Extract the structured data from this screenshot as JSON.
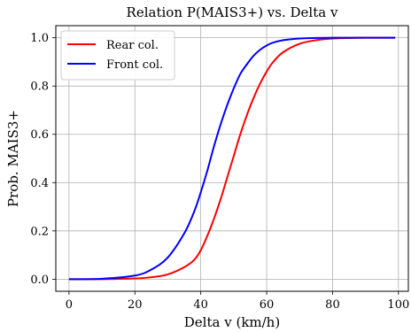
{
  "chart_data": {
    "type": "line",
    "title": "Relation P(MAIS3+) vs. Delta v",
    "xlabel": "Delta v (km/h)",
    "ylabel": "Prob. MAIS3+",
    "xlim": [
      -4,
      103
    ],
    "ylim": [
      -0.05,
      1.05
    ],
    "xticks": [
      0,
      20,
      40,
      60,
      80,
      100
    ],
    "yticks": [
      0.0,
      0.2,
      0.4,
      0.6,
      0.8,
      1.0
    ],
    "xtick_labels": [
      "0",
      "20",
      "40",
      "60",
      "80",
      "100"
    ],
    "ytick_labels": [
      "0.0",
      "0.2",
      "0.4",
      "0.6",
      "0.8",
      "1.0"
    ],
    "grid": true,
    "legend_position": "top-left",
    "x": [
      0,
      10,
      20,
      25,
      30,
      35,
      38,
      40,
      42,
      44,
      46,
      48,
      50,
      52,
      54,
      56,
      58,
      60,
      62,
      65,
      70,
      75,
      80,
      90,
      99
    ],
    "series": [
      {
        "name": "Rear col.",
        "color": "#ff0000",
        "values": [
          0.0,
          0.0,
          0.003,
          0.008,
          0.02,
          0.05,
          0.08,
          0.12,
          0.18,
          0.25,
          0.33,
          0.42,
          0.51,
          0.6,
          0.68,
          0.75,
          0.81,
          0.86,
          0.9,
          0.94,
          0.975,
          0.99,
          0.997,
          1.0,
          1.0
        ]
      },
      {
        "name": "Front col.",
        "color": "#0000ff",
        "values": [
          0.0,
          0.002,
          0.015,
          0.04,
          0.09,
          0.19,
          0.28,
          0.36,
          0.45,
          0.55,
          0.64,
          0.72,
          0.79,
          0.85,
          0.89,
          0.925,
          0.95,
          0.968,
          0.98,
          0.99,
          0.997,
          0.999,
          1.0,
          1.0,
          1.0
        ]
      }
    ]
  }
}
